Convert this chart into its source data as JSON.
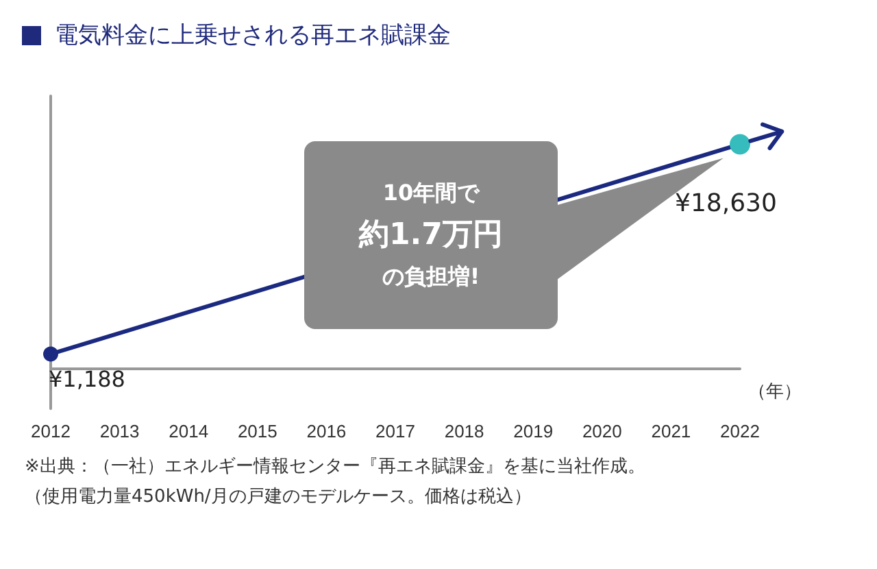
{
  "chart_data": {
    "type": "line",
    "title": "電気料金に上乗せされる再エネ賦課金",
    "xlabel": "（年）",
    "x": [
      2012,
      2022
    ],
    "xlim": [
      2012,
      2022
    ],
    "xticks": [
      2012,
      2013,
      2014,
      2015,
      2016,
      2017,
      2018,
      2019,
      2020,
      2021,
      2022
    ],
    "values": [
      1188,
      18630
    ],
    "value_labels": [
      "¥1,188",
      "¥18,630"
    ],
    "color": "#1b2a80",
    "colors": [
      "#1b2a80",
      "#36bcbc"
    ],
    "marker": "circle",
    "annotations": [
      "10年間で",
      "約1.7万円",
      "の負担増!",
      "※出典：（一社）エネルギー情報センター『再エネ賦課金』を基に当社作成。",
      "（使用電力量450kWh/月の戸建のモデルケース。価格は税込）"
    ]
  }
}
